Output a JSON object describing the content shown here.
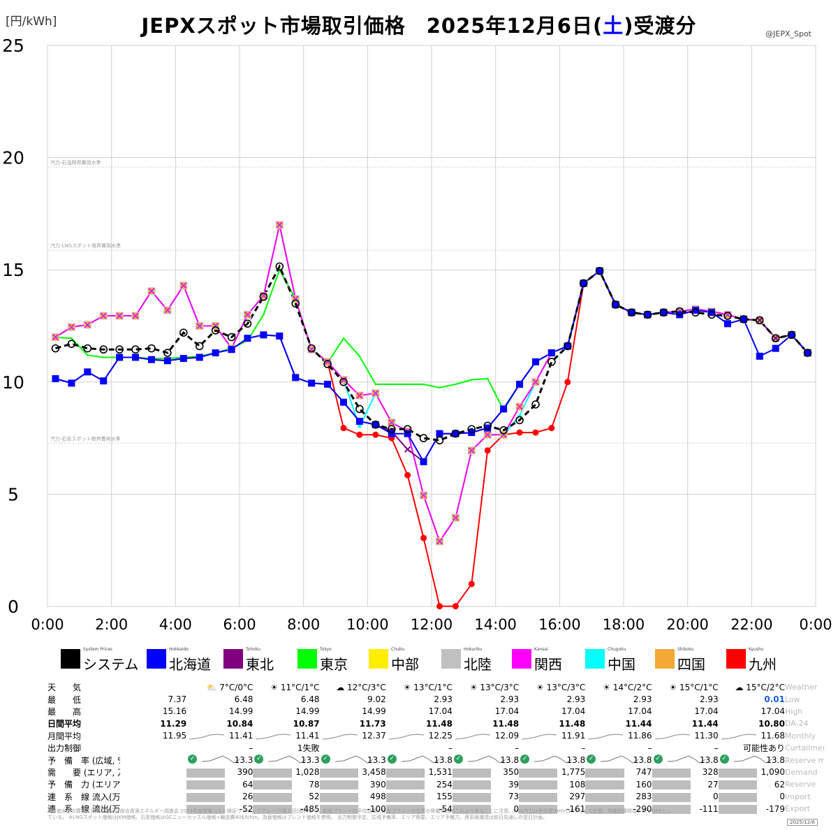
{
  "header": {
    "title_main": "JEPXスポット市場取引価格　2025年12月6日(",
    "title_day": "土",
    "title_tail": ")受渡分",
    "unit": "[円/kWh]",
    "credit": "@JEPX_Spot"
  },
  "colors": {
    "system": "#000000",
    "hokkaido": "#0000ff",
    "tohoku": "#800080",
    "tokyo": "#00ff00",
    "chubu": "#ffee00",
    "hokuriku": "#c0c0c0",
    "kansai": "#ff00ff",
    "chugoku": "#00ffff",
    "shikoku": "#f4a836",
    "kyushu": "#ff0000"
  },
  "chart_data": {
    "type": "line",
    "xlabel": "",
    "ylabel": "",
    "ylim": [
      0,
      25
    ],
    "xlim": [
      0,
      24
    ],
    "x_ticks": [
      "0:00",
      "2:00",
      "4:00",
      "6:00",
      "8:00",
      "10:00",
      "12:00",
      "14:00",
      "16:00",
      "18:00",
      "20:00",
      "22:00",
      "0:00"
    ],
    "y_ticks": [
      "0",
      "5",
      "10",
      "15",
      "20",
      "25"
    ],
    "grid": true,
    "reference_lines": [
      {
        "label": "汽力-石油限界費用水準",
        "value": 19.7
      },
      {
        "label": "汽力-LNGスポット限界費用水準",
        "value": 16.0
      },
      {
        "label": "汽力-石炭スポット限界費用水準",
        "value": 7.4
      }
    ],
    "x": [
      0.25,
      0.75,
      1.25,
      1.75,
      2.25,
      2.75,
      3.25,
      3.75,
      4.25,
      4.75,
      5.25,
      5.75,
      6.25,
      6.75,
      7.25,
      7.75,
      8.25,
      8.75,
      9.25,
      9.75,
      10.25,
      10.75,
      11.25,
      11.75,
      12.25,
      12.75,
      13.25,
      13.75,
      14.25,
      14.75,
      15.25,
      15.75,
      16.25,
      16.75,
      17.25,
      17.75,
      18.25,
      18.75,
      19.25,
      19.75,
      20.25,
      20.75,
      21.25,
      21.75,
      22.25,
      22.75,
      23.25,
      23.75
    ],
    "series": [
      {
        "name": "システム",
        "key": "system",
        "values": [
          11.5,
          11.7,
          11.5,
          11.45,
          11.45,
          11.45,
          11.5,
          11.3,
          12.2,
          11.6,
          12.3,
          12.0,
          12.6,
          13.8,
          15.15,
          13.5,
          11.5,
          10.8,
          10.0,
          8.8,
          8.1,
          7.9,
          7.9,
          7.5,
          7.4,
          7.7,
          7.9,
          8.05,
          7.85,
          8.3,
          9.0,
          10.9,
          11.6,
          14.4,
          14.95,
          13.45,
          13.1,
          13.0,
          13.1,
          13.15,
          13.1,
          13.0,
          12.95,
          12.8,
          12.75,
          11.95,
          12.1,
          11.3
        ]
      },
      {
        "name": "北海道",
        "key": "hokkaido",
        "values": [
          10.15,
          9.95,
          10.45,
          10.05,
          11.1,
          11.1,
          11.0,
          10.95,
          11.05,
          11.1,
          11.3,
          11.45,
          11.95,
          12.1,
          12.05,
          10.2,
          9.95,
          9.9,
          9.1,
          8.25,
          8.1,
          7.7,
          7.7,
          6.45,
          7.7,
          7.7,
          7.75,
          7.95,
          8.8,
          9.9,
          10.9,
          11.3,
          11.6,
          14.4,
          14.95,
          13.45,
          13.1,
          13.0,
          13.1,
          13.0,
          13.2,
          13.1,
          12.6,
          12.8,
          11.15,
          11.5,
          12.1,
          11.3
        ]
      },
      {
        "name": "東北",
        "key": "tohoku",
        "values": [
          10.15,
          9.95,
          10.45,
          10.05,
          11.1,
          11.1,
          11.0,
          10.95,
          11.05,
          11.1,
          11.3,
          11.45,
          11.95,
          12.1,
          12.05,
          10.2,
          9.95,
          9.9,
          9.1,
          8.25,
          8.1,
          7.8,
          7.0,
          6.45,
          7.7,
          7.7,
          7.75,
          7.95,
          8.8,
          9.9,
          10.9,
          11.3,
          11.6,
          14.4,
          14.95,
          13.45,
          13.1,
          13.0,
          13.1,
          13.0,
          13.2,
          13.1,
          12.6,
          12.8,
          12.75,
          11.95,
          12.1,
          11.3
        ]
      },
      {
        "name": "東京",
        "key": "tokyo",
        "values": [
          12.0,
          11.95,
          11.2,
          11.1,
          11.1,
          11.1,
          11.05,
          11.05,
          11.1,
          11.15,
          11.3,
          11.5,
          11.85,
          13.0,
          15.0,
          13.7,
          11.45,
          10.85,
          11.95,
          11.15,
          9.9,
          9.9,
          9.9,
          9.9,
          9.75,
          9.9,
          10.1,
          10.15,
          8.75,
          9.9,
          10.9,
          11.3,
          11.6,
          14.4,
          14.95,
          13.45,
          13.1,
          13.0,
          13.1,
          13.15,
          13.25,
          13.15,
          13.0,
          12.8,
          12.75,
          11.95,
          12.1,
          11.3
        ]
      },
      {
        "name": "中部",
        "key": "chubu",
        "values": [
          12.0,
          12.45,
          12.55,
          12.95,
          12.95,
          12.95,
          14.05,
          13.2,
          14.3,
          12.5,
          12.5,
          11.5,
          13.0,
          13.85,
          17.0,
          13.7,
          11.45,
          10.9,
          10.1,
          9.4,
          9.5,
          8.2,
          7.8,
          4.95,
          2.9,
          3.95,
          6.95,
          7.65,
          7.65,
          8.9,
          10.0,
          11.3,
          11.6,
          14.4,
          14.95,
          13.45,
          13.1,
          13.0,
          13.1,
          13.15,
          13.25,
          13.15,
          13.0,
          12.8,
          12.75,
          11.95,
          12.1,
          11.3
        ]
      },
      {
        "name": "北陸",
        "key": "hokuriku",
        "values": [
          12.0,
          12.45,
          12.55,
          12.95,
          12.95,
          12.95,
          14.05,
          13.2,
          14.3,
          12.5,
          12.5,
          11.5,
          13.0,
          13.85,
          17.0,
          13.7,
          11.45,
          10.9,
          10.1,
          9.4,
          9.5,
          8.2,
          7.8,
          4.95,
          2.9,
          3.95,
          6.95,
          7.65,
          7.65,
          8.9,
          10.0,
          11.3,
          11.6,
          14.4,
          14.95,
          13.45,
          13.1,
          13.0,
          13.1,
          13.15,
          13.25,
          13.15,
          13.0,
          12.8,
          12.75,
          11.95,
          12.1,
          11.3
        ]
      },
      {
        "name": "関西",
        "key": "kansai",
        "values": [
          12.0,
          12.45,
          12.55,
          12.95,
          12.95,
          12.95,
          14.05,
          13.2,
          14.3,
          12.5,
          12.5,
          11.5,
          13.0,
          13.85,
          17.0,
          13.7,
          11.45,
          10.9,
          10.1,
          9.4,
          9.5,
          8.2,
          7.8,
          4.95,
          2.9,
          3.95,
          6.95,
          7.65,
          7.65,
          8.9,
          10.0,
          11.3,
          11.6,
          14.4,
          14.95,
          13.45,
          13.1,
          13.0,
          13.1,
          13.15,
          13.25,
          13.15,
          13.0,
          12.8,
          12.75,
          11.95,
          12.1,
          11.3
        ]
      },
      {
        "name": "中国",
        "key": "chugoku",
        "values": [
          12.0,
          12.45,
          12.55,
          12.95,
          12.95,
          12.95,
          14.05,
          13.2,
          14.3,
          12.5,
          12.5,
          11.5,
          13.0,
          13.85,
          17.0,
          13.7,
          11.45,
          10.9,
          10.1,
          8.0,
          9.5,
          8.2,
          7.8,
          4.95,
          2.9,
          3.95,
          6.95,
          7.65,
          7.65,
          8.5,
          10.0,
          11.3,
          11.6,
          14.4,
          14.95,
          13.45,
          13.1,
          13.0,
          13.1,
          13.15,
          13.25,
          13.15,
          13.0,
          12.8,
          12.75,
          11.95,
          12.1,
          11.3
        ]
      },
      {
        "name": "四国",
        "key": "shikoku",
        "values": [
          12.0,
          12.45,
          12.55,
          12.95,
          12.95,
          12.95,
          14.05,
          13.2,
          14.3,
          12.5,
          12.5,
          11.5,
          13.0,
          13.85,
          17.0,
          13.7,
          11.45,
          10.9,
          10.1,
          9.4,
          9.5,
          8.2,
          7.8,
          4.95,
          2.9,
          3.95,
          6.95,
          7.65,
          7.65,
          8.9,
          10.0,
          11.3,
          11.6,
          14.4,
          14.95,
          13.45,
          13.1,
          13.0,
          13.1,
          13.15,
          13.25,
          13.15,
          13.0,
          12.8,
          12.75,
          11.95,
          12.1,
          11.3
        ]
      },
      {
        "name": "九州",
        "key": "kyushu",
        "values": [
          12.0,
          12.45,
          12.55,
          12.95,
          12.95,
          12.95,
          14.05,
          13.2,
          14.3,
          12.5,
          12.5,
          11.5,
          13.0,
          13.85,
          17.0,
          13.7,
          11.45,
          10.9,
          7.95,
          7.65,
          7.65,
          7.5,
          5.85,
          3.05,
          0.01,
          0.01,
          1.0,
          6.95,
          7.65,
          7.75,
          7.75,
          7.95,
          10.0,
          14.4,
          14.95,
          13.45,
          13.1,
          13.0,
          13.1,
          13.15,
          13.25,
          13.15,
          13.0,
          12.8,
          12.75,
          11.95,
          12.1,
          11.3
        ]
      }
    ]
  },
  "legend": [
    {
      "key": "system",
      "en": "System Prices",
      "jp": "システム"
    },
    {
      "key": "hokkaido",
      "en": "Hokkaido",
      "jp": "北海道"
    },
    {
      "key": "tohoku",
      "en": "Tohoku",
      "jp": "東北"
    },
    {
      "key": "tokyo",
      "en": "Tokyo",
      "jp": "東京"
    },
    {
      "key": "chubu",
      "en": "Chubu",
      "jp": "中部"
    },
    {
      "key": "hokuriku",
      "en": "Hokuriku",
      "jp": "北陸"
    },
    {
      "key": "kansai",
      "en": "Kansai",
      "jp": "関西"
    },
    {
      "key": "chugoku",
      "en": "Chugoku",
      "jp": "中国"
    },
    {
      "key": "shikoku",
      "en": "Shikoku",
      "jp": "四国"
    },
    {
      "key": "kyushu",
      "en": "Kyushu",
      "jp": "九州"
    }
  ],
  "info_table": {
    "rows": [
      {
        "jp": "天　　気",
        "en": "Weather",
        "bold": false,
        "type": "weather",
        "cells": [
          "",
          "7°C/0°C",
          "11°C/1°C",
          "12°C/3°C",
          "13°C/1°C",
          "13°C/3°C",
          "13°C/3°C",
          "14°C/2°C",
          "15°C/1°C",
          "15°C/2°C"
        ],
        "icons": [
          "",
          "⛅",
          "☀",
          "☁",
          "☀",
          "☀",
          "☀",
          "☀",
          "☀",
          "☁"
        ]
      },
      {
        "jp": "最　　低",
        "en": "Low",
        "bold": false,
        "cells": [
          "7.37",
          "6.48",
          "6.48",
          "9.02",
          "2.93",
          "2.93",
          "2.93",
          "2.93",
          "2.93",
          "0.01"
        ]
      },
      {
        "jp": "最　　高",
        "en": "High",
        "bold": false,
        "cells": [
          "15.16",
          "14.99",
          "14.99",
          "14.99",
          "17.04",
          "17.04",
          "17.04",
          "17.04",
          "17.04",
          "17.04"
        ]
      },
      {
        "jp": "日間平均",
        "en": "DA-24",
        "bold": true,
        "cells": [
          "11.29",
          "10.84",
          "10.87",
          "11.73",
          "11.48",
          "11.48",
          "11.48",
          "11.44",
          "11.44",
          "10.80"
        ]
      },
      {
        "jp": "月間平均",
        "en": "Monthly",
        "bold": false,
        "spark": true,
        "cells": [
          "11.95",
          "11.41",
          "11.41",
          "12.37",
          "12.25",
          "12.09",
          "11.91",
          "11.86",
          "11.30",
          "11.68"
        ]
      },
      {
        "jp": "出力制御",
        "en": "Curtailment",
        "bold": false,
        "cells": [
          "",
          "–",
          "1失敗",
          "",
          "–",
          "–",
          "–",
          "–",
          "–",
          "可能性あり"
        ]
      },
      {
        "jp": "予　備　率 (広域, %)",
        "en": "Reserve margin",
        "bold": false,
        "check": true,
        "cells": [
          "",
          "13.3",
          "13.3",
          "13.3",
          "13.8",
          "13.8",
          "13.8",
          "13.8",
          "13.8",
          "13.8"
        ]
      },
      {
        "jp": "需　　要 (エリア, 万kW)",
        "en": "Demand",
        "bold": false,
        "bar": true,
        "cells": [
          "",
          "390",
          "1,028",
          "3,458",
          "1,531",
          "350",
          "1,775",
          "747",
          "328",
          "1,090"
        ]
      },
      {
        "jp": "予　備　力 (エリア, 万kW)",
        "en": "Reserve",
        "bold": false,
        "bar": true,
        "cells": [
          "",
          "64",
          "78",
          "390",
          "254",
          "39",
          "108",
          "160",
          "27",
          "62"
        ]
      },
      {
        "jp": "連　系　線 流入(万kW)",
        "en": "Import",
        "bold": false,
        "bar": true,
        "cells": [
          "",
          "26",
          "52",
          "498",
          "155",
          "73",
          "297",
          "283",
          "0",
          "0"
        ]
      },
      {
        "jp": "連　系　線 流出(万kW)",
        "en": "Export",
        "bold": false,
        "bar": true,
        "cells": [
          "",
          "-52",
          "-485",
          "-100",
          "-54",
          "0",
          "-161",
          "-290",
          "-111",
          "-179"
        ]
      }
    ]
  },
  "footer": {
    "note": "※単価水準の算出に用いた諸元は総合資源エネルギー調査会 2024年度発電コスト検証ワーキンググループ(第８回)資料より。新設プラントの平均効率と既設プラントの効率の発電単価はこれより差ることに注意。LNG汽力は熱効率(HHV)38%として計算。発電税課税は0.3円/kWhとしている。 ※LNGスポット価格はJKM価格、石炭価格はGCニューカッスル価格+輸送費40$/t/ton。為替価格はブレント価格を参照。 出力制御予定、広域予備率、エリア需要、エリア予備力、連系線潮流は前日見通しの翌日計画。",
    "date_badge": "2025/12/6"
  }
}
